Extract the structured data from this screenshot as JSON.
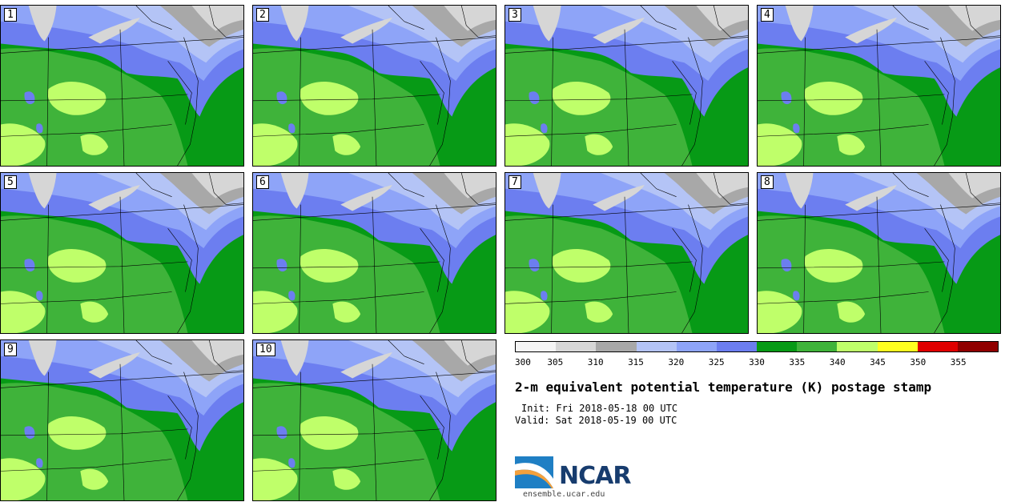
{
  "panels": [
    {
      "label": "1"
    },
    {
      "label": "2"
    },
    {
      "label": "3"
    },
    {
      "label": "4"
    },
    {
      "label": "5"
    },
    {
      "label": "6"
    },
    {
      "label": "7"
    },
    {
      "label": "8"
    },
    {
      "label": "9"
    },
    {
      "label": "10"
    }
  ],
  "colorbar": {
    "colors": [
      "#f4f4f4",
      "#d6d6d6",
      "#a8a8a8",
      "#b4c4f6",
      "#8ea4f8",
      "#6c7ef0",
      "#079a16",
      "#3fb33a",
      "#bfff6a",
      "#ffff20",
      "#e00000",
      "#900000"
    ],
    "ticks": [
      "300",
      "305",
      "310",
      "315",
      "320",
      "325",
      "330",
      "335",
      "340",
      "345",
      "350",
      "355"
    ]
  },
  "title": "2-m equivalent potential temperature (K) postage stamp",
  "init": "Init: Fri 2018-05-18 00 UTC",
  "valid": "Valid: Sat 2018-05-19 00 UTC",
  "logo": {
    "text": "NCAR",
    "site": "ensemble.ucar.edu"
  }
}
